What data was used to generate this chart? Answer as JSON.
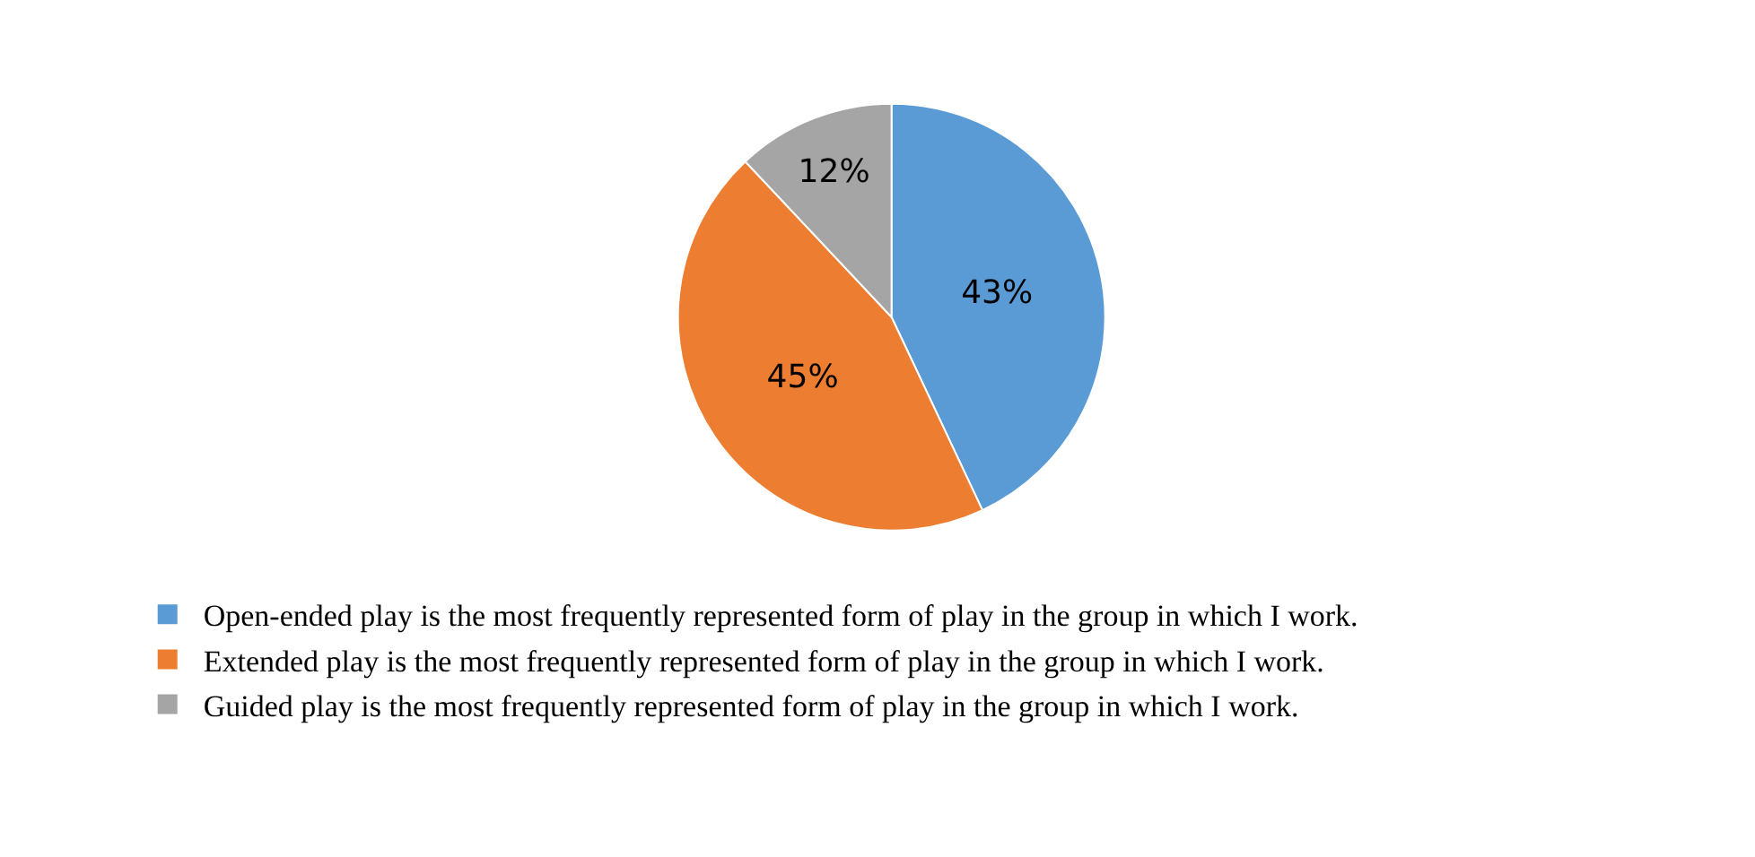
{
  "chart_data": {
    "type": "pie",
    "categories": [
      "Open-ended play is the most frequently represented form of play in the group in which I work.",
      "Extended play is the most frequently represented form of play in the group in which I work.",
      "Guided play is the most frequently represented form of play in the group in which I work."
    ],
    "values": [
      43,
      45,
      12
    ],
    "colors": [
      "#5b9bd5",
      "#ed7d31",
      "#a5a5a5"
    ],
    "value_labels": [
      "43%",
      "45%",
      "12%"
    ],
    "legend": "bottom"
  }
}
